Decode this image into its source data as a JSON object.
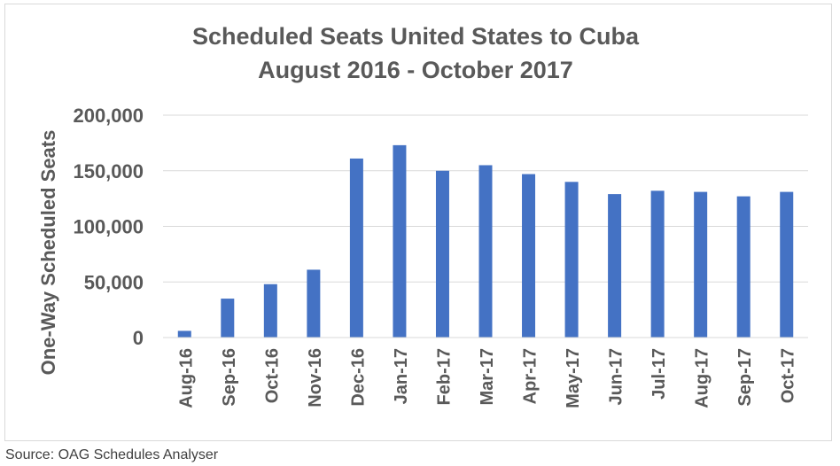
{
  "chart_data": {
    "type": "bar",
    "title": "Scheduled Seats United States to Cuba",
    "subtitle": "August 2016 - October 2017",
    "xlabel": "",
    "ylabel": "One-Way Scheduled Seats",
    "categories": [
      "Aug-16",
      "Sep-16",
      "Oct-16",
      "Nov-16",
      "Dec-16",
      "Jan-17",
      "Feb-17",
      "Mar-17",
      "Apr-17",
      "May-17",
      "Jun-17",
      "Jul-17",
      "Aug-17",
      "Sep-17",
      "Oct-17"
    ],
    "values": [
      6000,
      35000,
      48000,
      61000,
      161000,
      173000,
      150000,
      155000,
      147000,
      140000,
      129000,
      132000,
      131000,
      127000,
      131000
    ],
    "ylim": [
      0,
      200000
    ],
    "yticks": [
      "0",
      "50,000",
      "100,000",
      "150,000",
      "200,000"
    ],
    "grid": true,
    "bar_color": "#4472c4"
  },
  "footer": {
    "source": "Source: OAG Schedules Analyser"
  }
}
